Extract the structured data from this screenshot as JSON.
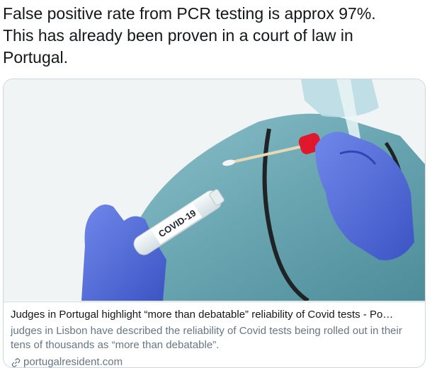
{
  "tweet": {
    "lines": [
      "False positive rate from PCR testing is approx 97%.",
      "This has already been proven in a court of law in",
      "Portugal."
    ]
  },
  "card": {
    "image": {
      "tube_label": "COVID-19",
      "icon": "covid-test-photo"
    },
    "title": "Judges in Portugal highlight “more than debatable” reliability of Covid tests  - Po…",
    "description": "judges in Lisbon have described the reliability of Covid tests being rolled out in their tens of thousands as “more than debatable”.",
    "domain": "portugalresident.com",
    "domain_icon": "link-icon"
  },
  "colors": {
    "text": "#14171a",
    "secondary": "#657786",
    "border": "#ccd6dd",
    "glove": "#4f68d6",
    "gown": "#6fa8b4",
    "cap": "#e0182d"
  }
}
